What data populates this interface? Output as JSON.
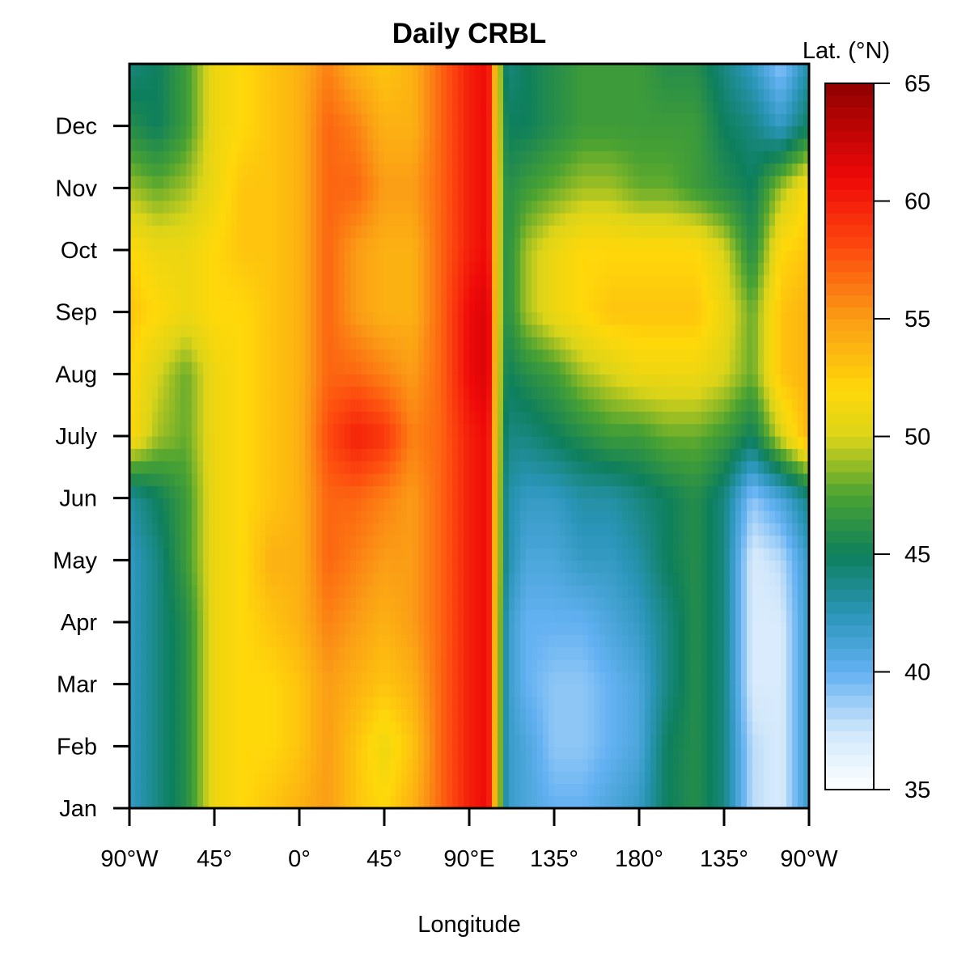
{
  "chart_data": {
    "type": "heatmap",
    "title": "Daily CRBL",
    "xlabel": "Longitude",
    "ylabel": "",
    "colorbar_label": "Lat. (°N)",
    "x_ticks": [
      "90°W",
      "45°",
      "0°",
      "45°",
      "90°E",
      "135°",
      "180°",
      "135°",
      "90°W"
    ],
    "y_ticks": [
      "Jan",
      "Feb",
      "Mar",
      "Apr",
      "May",
      "Jun",
      "July",
      "Aug",
      "Sep",
      "Oct",
      "Nov",
      "Dec"
    ],
    "colorbar_range": [
      35,
      65
    ],
    "colorbar_ticks": [
      "35",
      "40",
      "45",
      "50",
      "55",
      "60",
      "65"
    ],
    "colorscale": [
      {
        "value": 35,
        "color": "#ffffff"
      },
      {
        "value": 37.5,
        "color": "#cfe6fb"
      },
      {
        "value": 40,
        "color": "#63b1f2"
      },
      {
        "value": 42.5,
        "color": "#2a95b8"
      },
      {
        "value": 45,
        "color": "#0e7f5c"
      },
      {
        "value": 47.5,
        "color": "#49a232"
      },
      {
        "value": 50,
        "color": "#dbd419"
      },
      {
        "value": 52,
        "color": "#ffd80a"
      },
      {
        "value": 55,
        "color": "#fb9d16"
      },
      {
        "value": 58,
        "color": "#fd4a0f"
      },
      {
        "value": 61,
        "color": "#ef0808"
      },
      {
        "value": 65,
        "color": "#8f0000"
      }
    ],
    "x_range": [
      -90,
      270
    ],
    "y_range": [
      0,
      12
    ],
    "note_x": "longitude in degrees east, wrapped: -90 = 90°W, 270 = 90°W",
    "x_nodes": [
      -90,
      -75,
      -60,
      -45,
      -30,
      -15,
      0,
      15,
      30,
      45,
      60,
      75,
      90,
      100,
      105,
      110,
      120,
      135,
      150,
      165,
      180,
      195,
      210,
      225,
      240,
      255,
      270
    ],
    "y_nodes": [
      0,
      1,
      2,
      3,
      4,
      5,
      6,
      7,
      8,
      9,
      10,
      11,
      12
    ],
    "values": [
      [
        42,
        44,
        46,
        51,
        52,
        53,
        54,
        55,
        53,
        52,
        54,
        57,
        60,
        61,
        51,
        42,
        41,
        40,
        40,
        41,
        42,
        45,
        46,
        44,
        38,
        37,
        42
      ],
      [
        42,
        44,
        46,
        51,
        52,
        52,
        53,
        55,
        53,
        51,
        53,
        57,
        60,
        61,
        51,
        42,
        41,
        39,
        39,
        40,
        41,
        45,
        46,
        44,
        38,
        37,
        42
      ],
      [
        42,
        44,
        46,
        51,
        52,
        52,
        53,
        55,
        54,
        53,
        54,
        57,
        60,
        61,
        51,
        42,
        40,
        39,
        39,
        40,
        41,
        44,
        46,
        44,
        37,
        37,
        42
      ],
      [
        42,
        44,
        46,
        51,
        52,
        53,
        54,
        56,
        55,
        54,
        55,
        57,
        60,
        61,
        51,
        42,
        40,
        40,
        40,
        41,
        42,
        44,
        46,
        44,
        37,
        37,
        42
      ],
      [
        42,
        44,
        47,
        51,
        52,
        54,
        54,
        57,
        56,
        55,
        55,
        57,
        60,
        61,
        51,
        43,
        41,
        41,
        42,
        42,
        43,
        45,
        46,
        44,
        37,
        38,
        42
      ],
      [
        43,
        45,
        47,
        51,
        52,
        53,
        54,
        57,
        57,
        56,
        55,
        57,
        60,
        61,
        51,
        43,
        42,
        42,
        43,
        43,
        44,
        45,
        46,
        44,
        39,
        41,
        44
      ],
      [
        52,
        49,
        48,
        51,
        52,
        53,
        54,
        58,
        60,
        59,
        56,
        57,
        60,
        61,
        51,
        44,
        44,
        45,
        46,
        47,
        47,
        48,
        48,
        47,
        45,
        50,
        54
      ],
      [
        52,
        50,
        48,
        51,
        52,
        53,
        54,
        57,
        57,
        56,
        55,
        57,
        61,
        62,
        51,
        45,
        46,
        47,
        49,
        50,
        51,
        51,
        51,
        50,
        48,
        53,
        54
      ],
      [
        53,
        52,
        51,
        52,
        52,
        53,
        54,
        57,
        55,
        54,
        54,
        57,
        61,
        62,
        51,
        46,
        49,
        51,
        52,
        53,
        53,
        53,
        53,
        51,
        48,
        53,
        54
      ],
      [
        52,
        51,
        51,
        52,
        53,
        53,
        54,
        57,
        55,
        54,
        54,
        57,
        60,
        61,
        51,
        46,
        49,
        51,
        52,
        52,
        52,
        52,
        52,
        50,
        46,
        52,
        53
      ],
      [
        49,
        48,
        49,
        51,
        53,
        53,
        54,
        57,
        57,
        55,
        55,
        57,
        60,
        61,
        51,
        46,
        47,
        48,
        49,
        49,
        48,
        48,
        47,
        46,
        45,
        49,
        52
      ],
      [
        46,
        45,
        47,
        51,
        52,
        53,
        54,
        57,
        56,
        54,
        54,
        57,
        60,
        61,
        51,
        45,
        45,
        46,
        47,
        47,
        47,
        47,
        47,
        45,
        44,
        42,
        45
      ],
      [
        44,
        45,
        47,
        51,
        52,
        53,
        54,
        56,
        54,
        53,
        54,
        57,
        60,
        61,
        51,
        44,
        45,
        46,
        47,
        47,
        47,
        46,
        46,
        44,
        42,
        39,
        43
      ]
    ]
  }
}
